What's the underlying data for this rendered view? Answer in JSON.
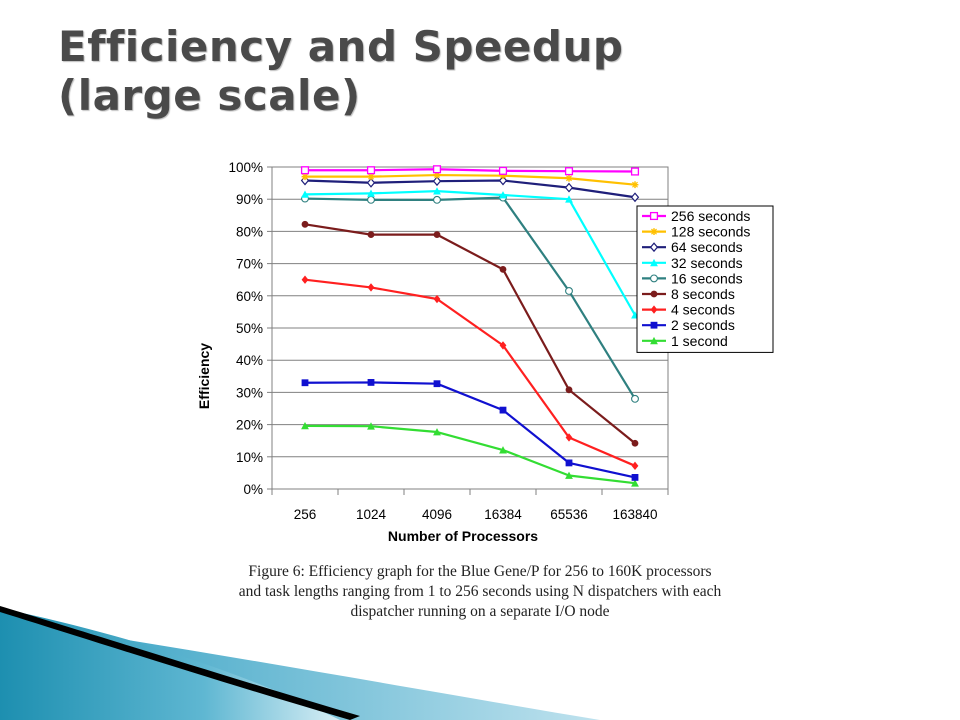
{
  "slide": {
    "title_line1": "Efficiency and Speedup",
    "title_line2": "(large scale)"
  },
  "caption": {
    "line1": "Figure 6: Efficiency graph for the Blue Gene/P for 256 to 160K processors",
    "line2": "and task lengths ranging from 1 to 256 seconds using N dispatchers with each",
    "line3": "dispatcher running on a separate I/O node"
  },
  "chart_data": {
    "type": "line",
    "xlabel": "Number of Processors",
    "ylabel": "Efficiency",
    "categories": [
      "256",
      "1024",
      "4096",
      "16384",
      "65536",
      "163840"
    ],
    "yticks": [
      "0%",
      "10%",
      "20%",
      "30%",
      "40%",
      "50%",
      "60%",
      "70%",
      "80%",
      "90%",
      "100%"
    ],
    "ylim": [
      0,
      100
    ],
    "grid": true,
    "legend_position": "right",
    "series": [
      {
        "name": "256 seconds",
        "color": "#ff00ff",
        "marker": "square-open",
        "values": [
          99,
          99,
          99.3,
          98.8,
          98.7,
          98.6
        ]
      },
      {
        "name": "128 seconds",
        "color": "#ffc000",
        "marker": "star",
        "values": [
          97,
          97,
          97.5,
          97.3,
          96.5,
          94.5
        ]
      },
      {
        "name": "64 seconds",
        "color": "#1f1f7a",
        "marker": "diamond-open",
        "values": [
          95.8,
          95.1,
          95.6,
          95.8,
          93.6,
          90.6
        ]
      },
      {
        "name": "32 seconds",
        "color": "#00ffff",
        "marker": "triangle",
        "values": [
          91.5,
          91.8,
          92.5,
          91.3,
          90,
          54
        ]
      },
      {
        "name": "16 seconds",
        "color": "#2f8080",
        "marker": "circle-open",
        "values": [
          90.2,
          89.8,
          89.8,
          90.5,
          61.5,
          28
        ]
      },
      {
        "name": "8 seconds",
        "color": "#7b1c1c",
        "marker": "circle",
        "values": [
          82.2,
          79,
          79,
          68.2,
          30.8,
          14.2
        ]
      },
      {
        "name": "4 seconds",
        "color": "#ff2020",
        "marker": "diamond",
        "values": [
          65,
          62.6,
          59,
          44.6,
          16,
          7.2
        ]
      },
      {
        "name": "2 seconds",
        "color": "#1010d0",
        "marker": "square",
        "values": [
          33,
          33.1,
          32.7,
          24.5,
          8.1,
          3.6
        ]
      },
      {
        "name": "1 second",
        "color": "#33dd33",
        "marker": "triangle",
        "values": [
          19.6,
          19.5,
          17.7,
          12.1,
          4.2,
          1.8
        ]
      }
    ]
  }
}
